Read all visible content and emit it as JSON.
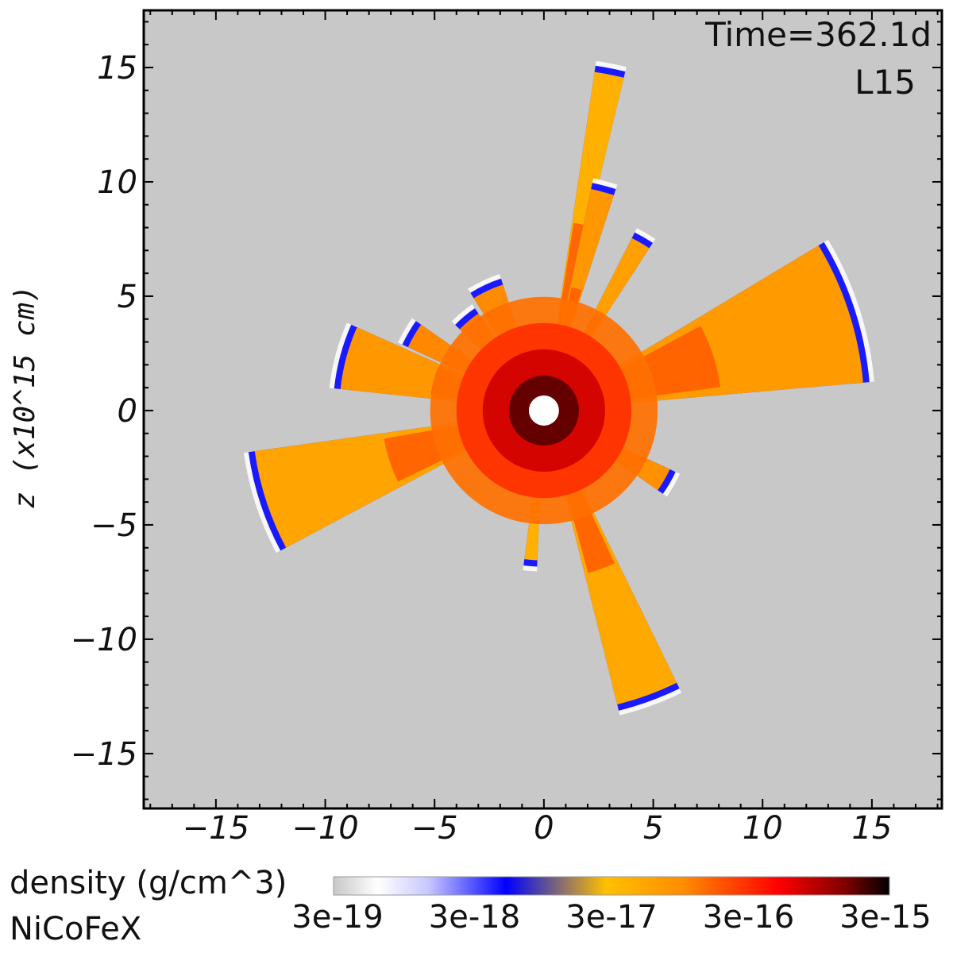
{
  "chart_data": {
    "type": "heatmap",
    "title": "",
    "xlabel": "",
    "ylabel": "z  (x10^15  cm)",
    "xlim": [
      -18.3,
      18.2
    ],
    "ylim": [
      -17.4,
      17.5
    ],
    "x_ticks": [
      -15,
      -10,
      -5,
      0,
      5,
      10,
      15
    ],
    "y_ticks": [
      15,
      10,
      5,
      0,
      -5,
      -10,
      -15
    ],
    "annotations": [
      "Time=362.1d",
      "L15"
    ],
    "background_color": "#c8c8c8",
    "central_marker": {
      "x": 0,
      "y": 0,
      "color": "#ffffff"
    },
    "colorbar": {
      "label": "density (g/cm^3)",
      "sublabel": "NiCoFeX",
      "scale": "log",
      "ticks": [
        "3e-19",
        "3e-18",
        "3e-17",
        "3e-16",
        "3e-15"
      ],
      "colors": [
        "#c8c8c8",
        "#ffffff",
        "#0000ff",
        "#ffc000",
        "#ff8c00",
        "#ff0000",
        "#000000"
      ]
    },
    "plumes": [
      {
        "angle_deg": 79,
        "length": 15.8,
        "width_deg": 5,
        "color": "#ffb000"
      },
      {
        "angle_deg": 75,
        "length": 10.5,
        "width_deg": 6,
        "color": "#ff9800"
      },
      {
        "angle_deg": 60,
        "length": 9.0,
        "width_deg": 6,
        "color": "#ffa000"
      },
      {
        "angle_deg": 18,
        "length": 14.8,
        "width_deg": 26,
        "color": "#ff9a00"
      },
      {
        "angle_deg": -30,
        "length": 6.5,
        "width_deg": 10,
        "color": "#ff9000"
      },
      {
        "angle_deg": -70,
        "length": 14.0,
        "width_deg": 12,
        "color": "#ffa800"
      },
      {
        "angle_deg": -95,
        "length": 7.0,
        "width_deg": 5,
        "color": "#ffb000"
      },
      {
        "angle_deg": 198,
        "length": 13.5,
        "width_deg": 20,
        "color": "#ffa400"
      },
      {
        "angle_deg": 165,
        "length": 9.5,
        "width_deg": 18,
        "color": "#ff9800"
      },
      {
        "angle_deg": 150,
        "length": 7.0,
        "width_deg": 10,
        "color": "#ff8800"
      },
      {
        "angle_deg": 115,
        "length": 6.2,
        "width_deg": 14,
        "color": "#ff8c00"
      },
      {
        "angle_deg": 130,
        "length": 5.5,
        "width_deg": 12,
        "color": "#ff7a00"
      }
    ],
    "core_rings": [
      {
        "radius": 5.2,
        "color": "#ff7000"
      },
      {
        "radius": 4.0,
        "color": "#ff3000"
      },
      {
        "radius": 2.8,
        "color": "#d00000"
      },
      {
        "radius": 1.6,
        "color": "#5a0000"
      }
    ]
  }
}
